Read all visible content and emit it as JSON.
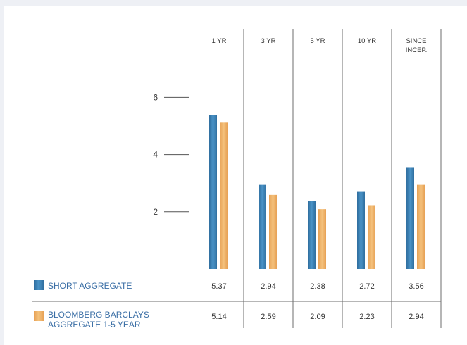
{
  "chart_data": {
    "type": "bar",
    "categories": [
      "1 YR",
      "3 YR",
      "5 YR",
      "10 YR",
      "SINCE INCEP."
    ],
    "series": [
      {
        "name": "SHORT AGGREGATE",
        "values": [
          5.37,
          2.94,
          2.38,
          2.72,
          3.56
        ]
      },
      {
        "name": "BLOOMBERG BARCLAYS AGGREGATE 1-5 YEAR",
        "values": [
          5.14,
          2.59,
          2.09,
          2.23,
          2.94
        ]
      }
    ],
    "y_ticks": [
      "2",
      "4",
      "6"
    ],
    "ylim": [
      0,
      6
    ],
    "colors": {
      "short_aggregate": "#3b7fb3",
      "bloomberg_barclays": "#eeb065"
    },
    "grid": false,
    "legend_placement": "bottom-left table"
  }
}
